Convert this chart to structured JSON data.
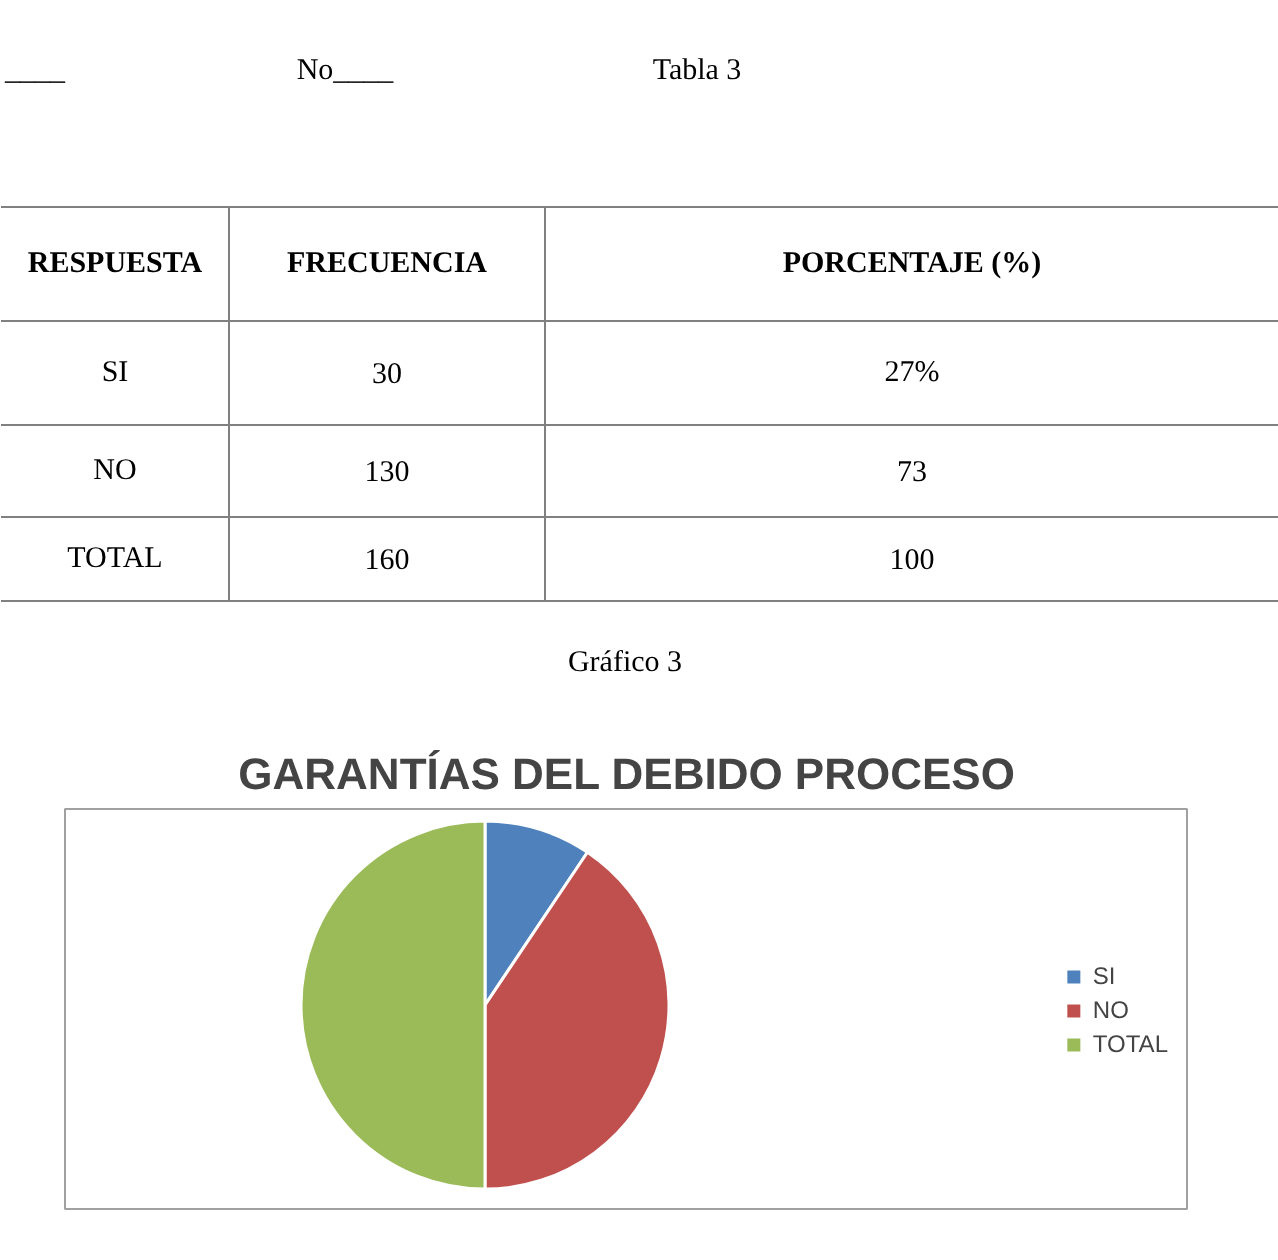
{
  "chart_data": [
    {
      "type": "other",
      "annotations": [
        "____",
        "No____",
        "Tabla 3",
        "RESPUESTA",
        "FRECUENCIA",
        "PORCENTAJE (%)",
        "SI",
        "30",
        "27%",
        "NO",
        "130",
        "73",
        "TOTAL",
        "160",
        "100",
        "Gráfico 3"
      ]
    },
    {
      "type": "pie",
      "title": "GARANTÍAS DEL DEBIDO PROCESO",
      "categories": [
        "SI",
        "NO",
        "TOTAL"
      ],
      "values": [
        9.4,
        40.6,
        50
      ],
      "colors": [
        "#4f81bd",
        "#c0504d",
        "#9bbb59"
      ],
      "legend": "right"
    }
  ]
}
